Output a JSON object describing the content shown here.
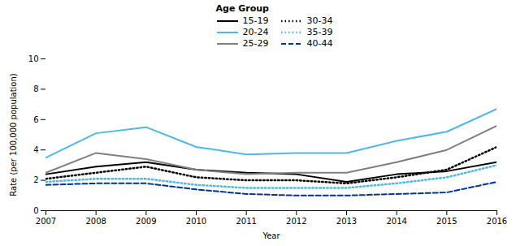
{
  "chart_data": {
    "type": "line",
    "xlabel": "Year",
    "ylabel": "Rate (per 100,000 population)",
    "legend_title": "Age Group",
    "x": [
      2007,
      2008,
      2009,
      2010,
      2011,
      2012,
      2013,
      2014,
      2015,
      2016
    ],
    "series": [
      {
        "name": "15-19",
        "color": "#000000",
        "line_style": "solid",
        "values": [
          2.4,
          2.9,
          3.2,
          2.7,
          2.5,
          2.4,
          1.9,
          2.4,
          2.6,
          3.2
        ]
      },
      {
        "name": "20-24",
        "color": "#4db8e8",
        "line_style": "solid",
        "values": [
          3.5,
          5.1,
          5.5,
          4.2,
          3.7,
          3.8,
          3.8,
          4.6,
          5.2,
          6.7
        ]
      },
      {
        "name": "25-29",
        "color": "#808080",
        "line_style": "solid",
        "values": [
          2.5,
          3.8,
          3.4,
          2.7,
          2.4,
          2.5,
          2.5,
          3.2,
          4.0,
          5.6
        ]
      },
      {
        "name": "30-34",
        "color": "#000000",
        "line_style": "dotted",
        "values": [
          2.1,
          2.5,
          2.9,
          2.2,
          2.0,
          2.0,
          1.8,
          2.2,
          2.7,
          4.2
        ]
      },
      {
        "name": "35-39",
        "color": "#4db8e8",
        "line_style": "dotted",
        "values": [
          1.9,
          2.1,
          2.1,
          1.7,
          1.5,
          1.5,
          1.5,
          1.8,
          2.2,
          3.0
        ]
      },
      {
        "name": "40-44",
        "color": "#003399",
        "line_style": "dashed",
        "values": [
          1.7,
          1.8,
          1.8,
          1.4,
          1.1,
          1.0,
          1.0,
          1.1,
          1.2,
          1.9
        ]
      }
    ],
    "xlim": [
      2007,
      2016
    ],
    "xticks": [
      2007,
      2008,
      2009,
      2010,
      2011,
      2012,
      2013,
      2014,
      2015,
      2016
    ],
    "ylim": [
      0,
      10
    ],
    "yticks": [
      0,
      2,
      4,
      6,
      8,
      10
    ],
    "grid": false,
    "legend": "upper center"
  }
}
